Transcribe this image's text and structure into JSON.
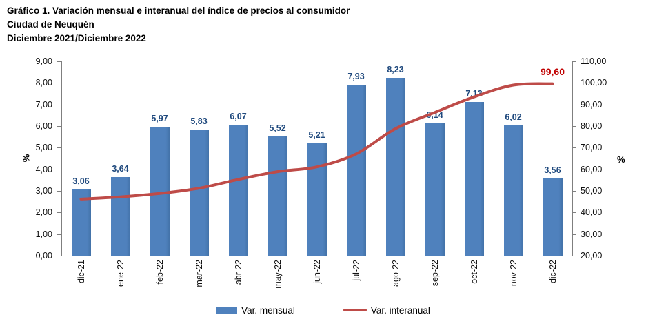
{
  "header": {
    "title": "Gráfico 1. Variación mensual e interanual del índice de precios al consumidor",
    "subtitle": "Ciudad de Neuquén",
    "period": "Diciembre 2021/Diciembre 2022"
  },
  "chart_data": {
    "type": "bar+line combo",
    "categories": [
      "dic-21",
      "ene-22",
      "feb-22",
      "mar-22",
      "abr-22",
      "may-22",
      "jun-22",
      "jul-22",
      "ago-22",
      "sep-22",
      "oct-22",
      "nov-22",
      "dic-22"
    ],
    "series": [
      {
        "name": "Var. mensual",
        "type": "bar",
        "axis": "left",
        "values": [
          3.06,
          3.64,
          5.97,
          5.83,
          6.07,
          5.52,
          5.21,
          7.93,
          8.23,
          6.14,
          7.13,
          6.02,
          3.56
        ],
        "labels": [
          "3,06",
          "3,64",
          "5,97",
          "5,83",
          "6,07",
          "5,52",
          "5,21",
          "7,93",
          "8,23",
          "6,14",
          "7,13",
          "6,02",
          "3,56"
        ]
      },
      {
        "name": "Var. interanual",
        "type": "line",
        "axis": "right",
        "values": [
          46.2,
          47.2,
          48.8,
          51.2,
          55.3,
          58.9,
          61.1,
          67.1,
          78.8,
          86.3,
          93.5,
          99.0,
          99.6
        ],
        "end_label": "99,60"
      }
    ],
    "left_axis": {
      "title": "%",
      "min": 0,
      "max": 9,
      "step": 1,
      "tick_labels": [
        "0,00",
        "1,00",
        "2,00",
        "3,00",
        "4,00",
        "5,00",
        "6,00",
        "7,00",
        "8,00",
        "9,00"
      ]
    },
    "right_axis": {
      "title": "%",
      "min": 20,
      "max": 110,
      "step": 10,
      "tick_labels": [
        "20,00",
        "30,00",
        "40,00",
        "50,00",
        "60,00",
        "70,00",
        "80,00",
        "90,00",
        "100,00",
        "110,00"
      ]
    },
    "grid": false,
    "legend_position": "bottom"
  },
  "legend": {
    "bar_label": "Var. mensual",
    "line_label": "Var. interanual"
  },
  "colors": {
    "bar": "#4F81BD",
    "bar_edge": "#4372A8",
    "line": "#BE4B48",
    "data_label": "#1F497D",
    "end_label": "#C00000"
  }
}
